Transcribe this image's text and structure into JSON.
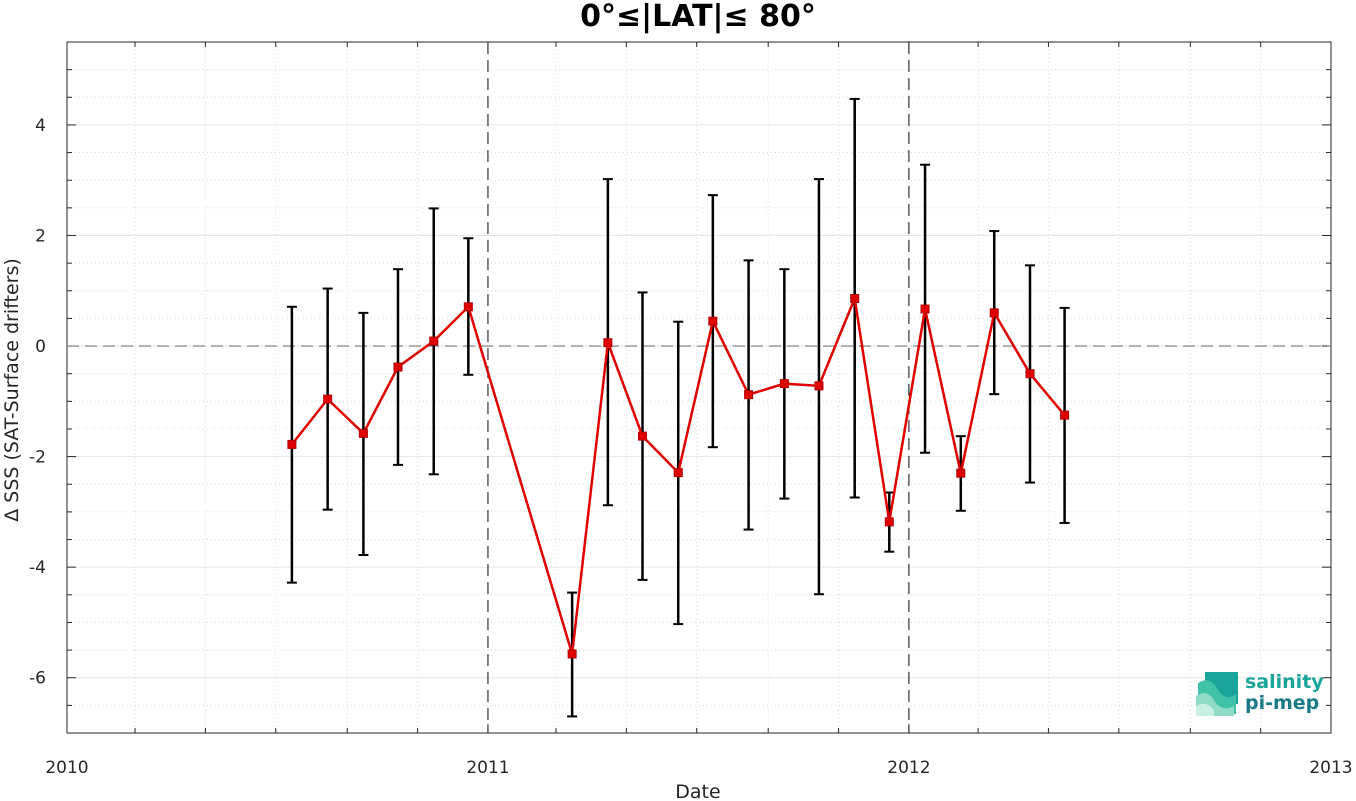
{
  "chart_data": {
    "type": "line",
    "title": "0°≤|LAT|≤ 80°",
    "xlabel": "Date",
    "ylabel": "Δ SSS (SAT-Surface drifters)",
    "xlim": [
      "2010-01-01",
      "2013-01-01"
    ],
    "ylim": [
      -7,
      5.5
    ],
    "x_ticks": [
      "2010",
      "2011",
      "2012",
      "2013"
    ],
    "y_ticks": [
      4,
      2,
      0,
      -2,
      -4,
      -6
    ],
    "y_tick_labels": [
      "4",
      "2",
      "0",
      "-2",
      "-4",
      "-6"
    ],
    "grid": true,
    "year_separators": [
      "2011-01-01",
      "2012-01-01"
    ],
    "zero_line": 0,
    "line_color": "#e00000",
    "errorbar_color": "#000000",
    "series": [
      {
        "x": [
          "2010-07-15",
          "2010-08-15",
          "2010-09-15",
          "2010-10-15",
          "2010-11-15",
          "2010-12-15",
          "2011-03-15",
          "2011-04-15",
          "2011-05-15",
          "2011-06-15",
          "2011-07-15",
          "2011-08-15",
          "2011-09-15",
          "2011-10-15",
          "2011-11-15",
          "2011-12-15",
          "2012-01-15",
          "2012-02-15",
          "2012-03-15",
          "2012-04-15",
          "2012-05-15"
        ],
        "y": [
          -1.78,
          -0.96,
          -1.58,
          -0.38,
          0.09,
          0.71,
          -5.57,
          0.06,
          -1.63,
          -2.29,
          0.45,
          -0.88,
          -0.68,
          -0.72,
          0.86,
          -3.18,
          0.67,
          -2.3,
          0.6,
          -0.5,
          -1.25
        ],
        "y_low": [
          -4.28,
          -2.96,
          -3.78,
          -2.15,
          -2.32,
          -0.52,
          -6.7,
          -2.88,
          -4.23,
          -5.03,
          -1.83,
          -3.32,
          -2.76,
          -4.49,
          -2.74,
          -3.72,
          -1.93,
          -2.98,
          -0.87,
          -2.47,
          -3.2
        ],
        "y_high": [
          0.71,
          1.04,
          0.6,
          1.39,
          2.49,
          1.95,
          -4.46,
          3.02,
          0.97,
          0.44,
          2.73,
          1.55,
          1.39,
          3.02,
          4.47,
          -2.65,
          3.28,
          -1.63,
          2.08,
          1.46,
          0.69
        ]
      }
    ]
  },
  "logo": {
    "line1": "salinity",
    "line2": "pi-mep",
    "color": "#1aa59a"
  }
}
